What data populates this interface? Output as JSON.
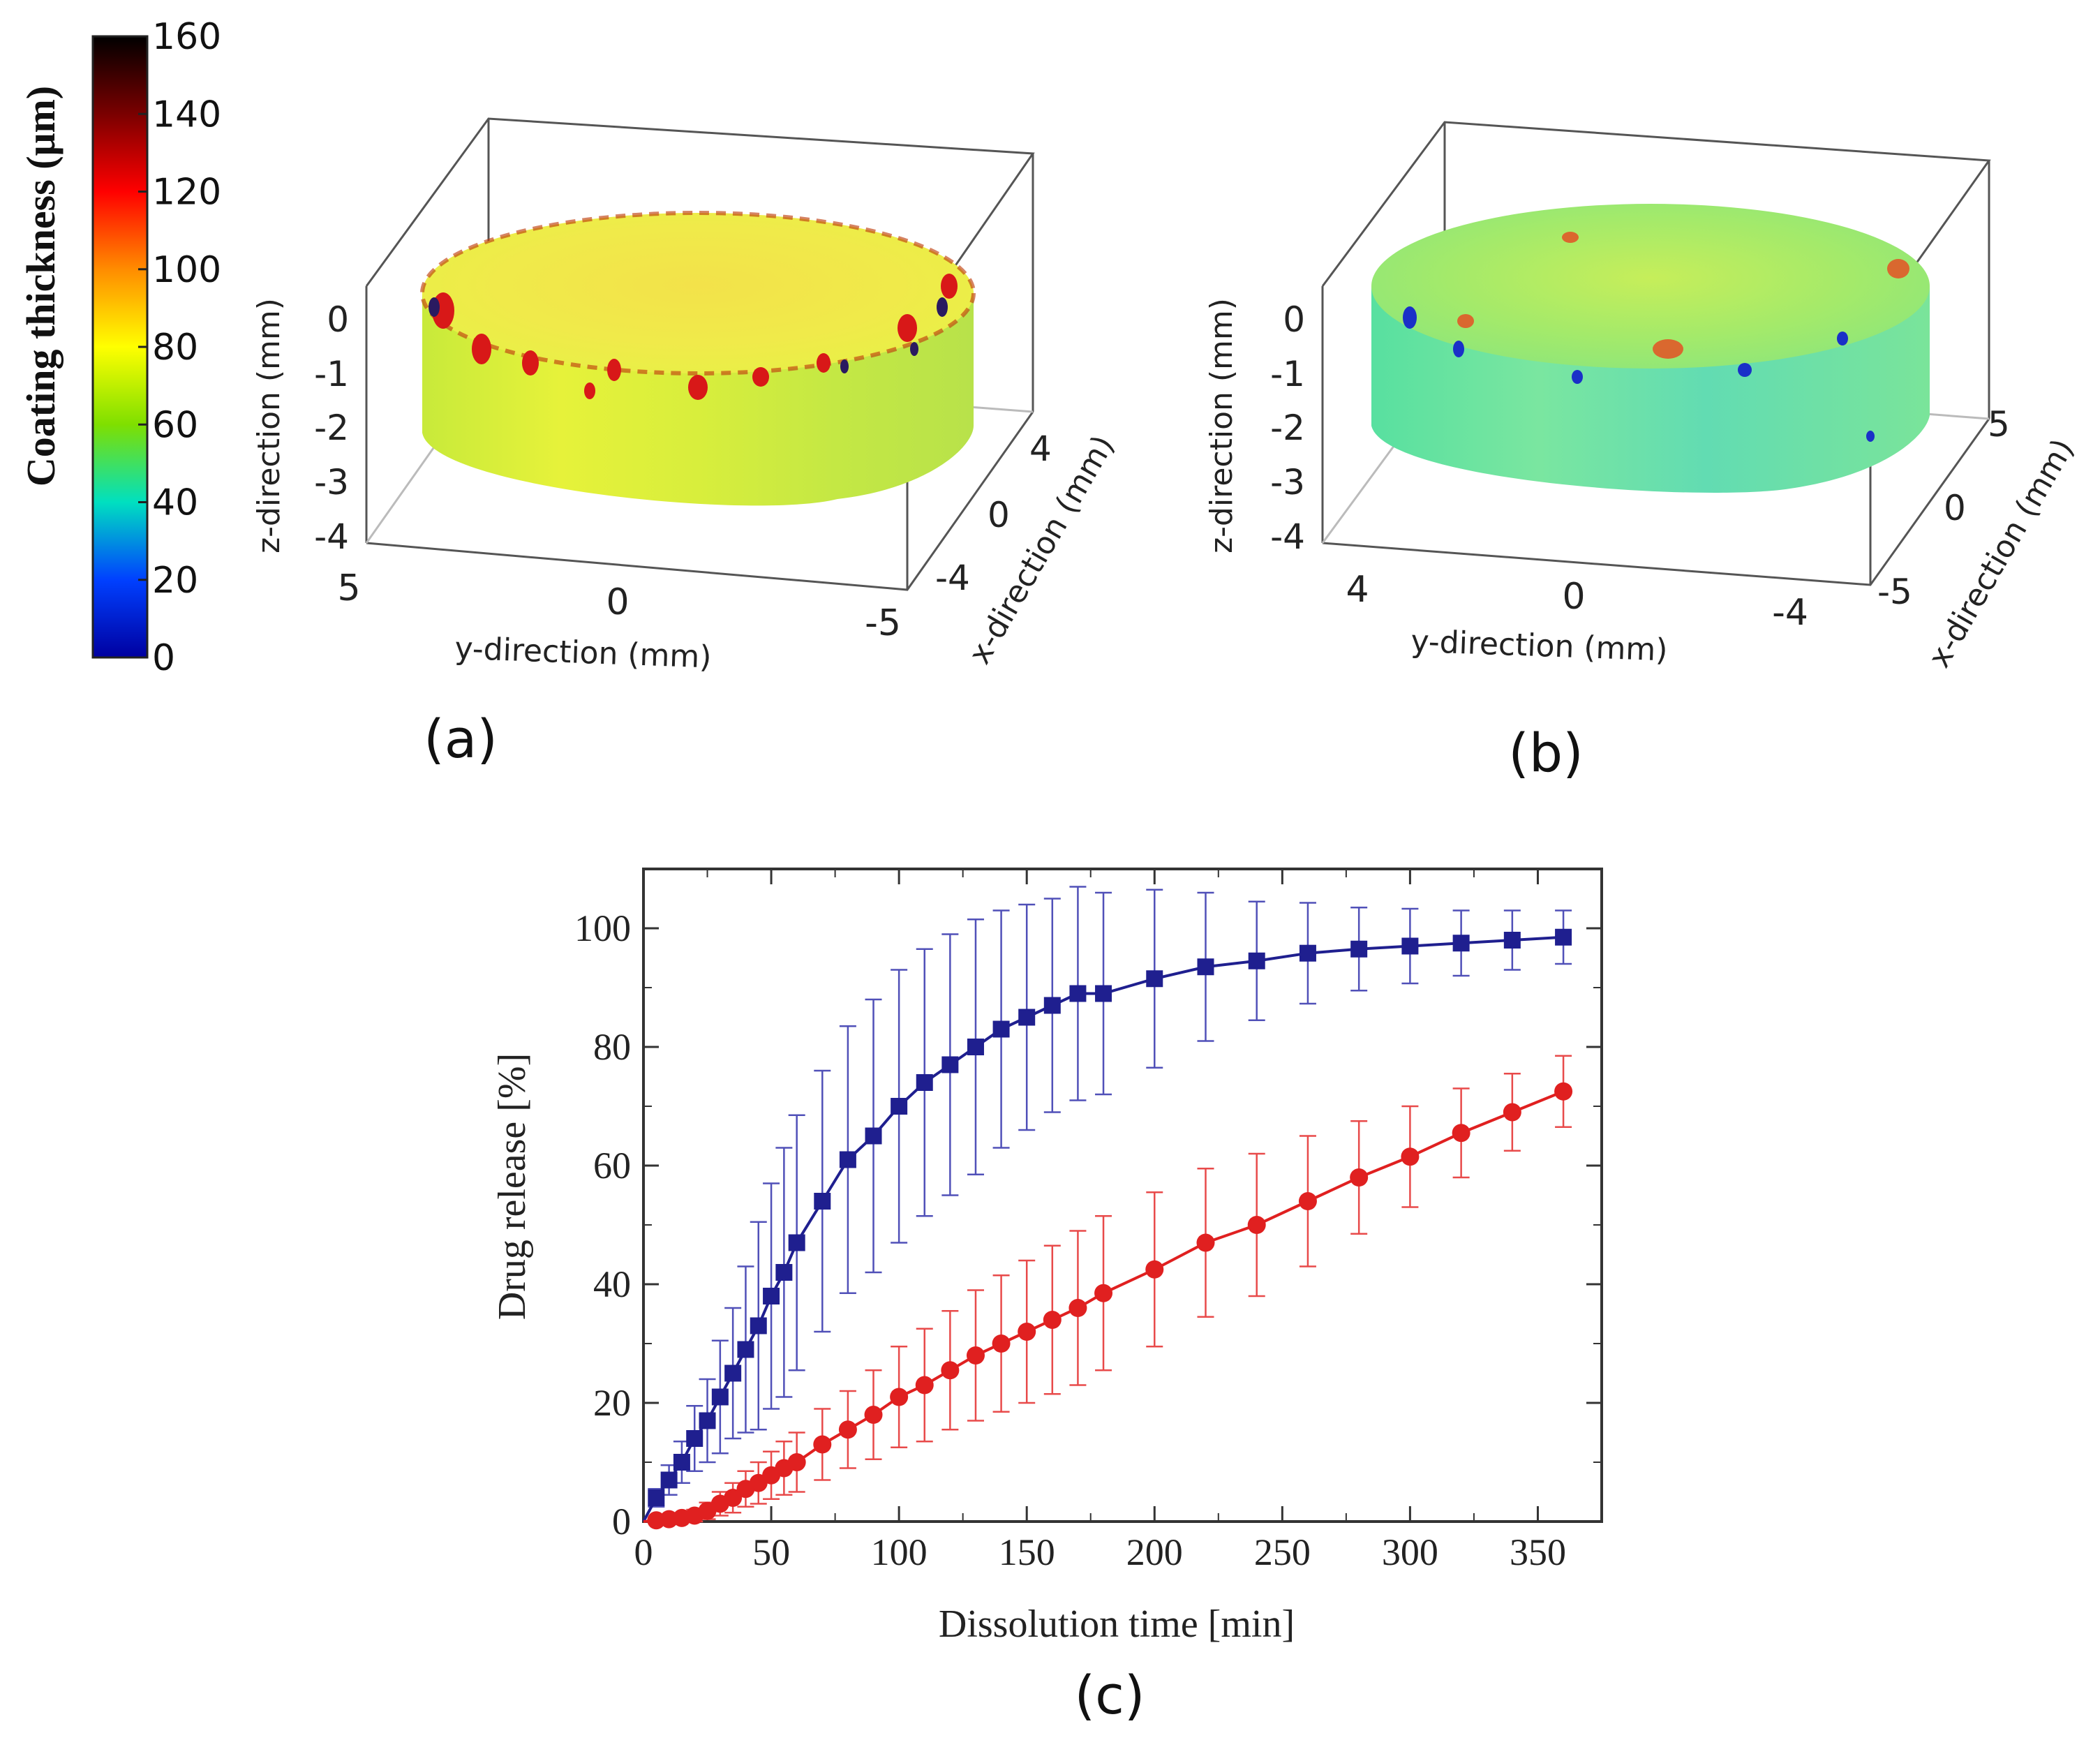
{
  "colorbar": {
    "label": "Coating thickness (μm)",
    "ticks": [
      "160",
      "140",
      "120",
      "100",
      "80",
      "60",
      "40",
      "20",
      "0"
    ],
    "colors": [
      "#000000",
      "#7a0000",
      "#ff0000",
      "#ff8c00",
      "#ffff00",
      "#7fdf00",
      "#00e0c0",
      "#0040ff",
      "#0000a0"
    ]
  },
  "panel_a": {
    "label": "(a)",
    "z_ticks": [
      "0",
      "-1",
      "-2",
      "-3",
      "-4"
    ],
    "y_ticks": [
      "5",
      "0",
      "-5"
    ],
    "x_ticks": [
      "4",
      "0",
      "-4"
    ],
    "z_label": "z-direction (mm)",
    "y_label": "y-direction (mm)",
    "x_label": "x-direction (mm)"
  },
  "panel_b": {
    "label": "(b)",
    "z_ticks": [
      "0",
      "-1",
      "-2",
      "-3",
      "-4"
    ],
    "y_ticks": [
      "4",
      "0",
      "-4"
    ],
    "x_ticks": [
      "5",
      "0",
      "-5"
    ],
    "z_label": "z-direction (mm)",
    "y_label": "y-direction (mm)",
    "x_label": "x-direction (mm)"
  },
  "panel_c": {
    "label": "(c)"
  },
  "chart_data": {
    "type": "line",
    "title": "",
    "xlabel": "Dissolution time [min]",
    "ylabel": "Drug release [%]",
    "xlim": [
      0,
      375
    ],
    "ylim": [
      0,
      110
    ],
    "xticks": [
      0,
      50,
      100,
      150,
      200,
      250,
      300,
      350
    ],
    "yticks": [
      0,
      20,
      40,
      60,
      80,
      100
    ],
    "grid": false,
    "series": [
      {
        "name": "blue squares",
        "color": "#1f1f8f",
        "errcolor": "#5050b8",
        "marker": "square",
        "x": [
          5,
          10,
          15,
          20,
          25,
          30,
          35,
          40,
          45,
          50,
          55,
          60,
          70,
          80,
          90,
          100,
          110,
          120,
          130,
          140,
          150,
          160,
          170,
          180,
          200,
          220,
          240,
          260,
          280,
          300,
          320,
          340,
          360
        ],
        "y": [
          4,
          7,
          10,
          14,
          17,
          21,
          25,
          29,
          33,
          38,
          42,
          47,
          54,
          61,
          65,
          70,
          74,
          77,
          80,
          83,
          85,
          87,
          89,
          89,
          91.5,
          93.5,
          94.5,
          95.8,
          96.5,
          97,
          97.5,
          98,
          98.5
        ],
        "err": [
          1.5,
          2.5,
          3.5,
          5.5,
          7,
          9.5,
          11,
          14,
          17.5,
          19,
          21,
          21.5,
          22,
          22.5,
          23,
          23,
          22.5,
          22,
          21.5,
          20,
          19,
          18,
          18,
          17,
          15,
          12.5,
          10,
          8.5,
          7,
          6.3,
          5.5,
          5,
          4.5
        ]
      },
      {
        "name": "red circles",
        "color": "#e02020",
        "errcolor": "#e84a4a",
        "marker": "circle",
        "x": [
          5,
          10,
          15,
          20,
          25,
          30,
          35,
          40,
          45,
          50,
          55,
          60,
          70,
          80,
          90,
          100,
          110,
          120,
          130,
          140,
          150,
          160,
          170,
          180,
          200,
          220,
          240,
          260,
          280,
          300,
          320,
          340,
          360
        ],
        "y": [
          0.2,
          0.4,
          0.6,
          1,
          1.8,
          3,
          4,
          5.5,
          6.5,
          7.8,
          9,
          10,
          13,
          15.5,
          18,
          21,
          23,
          25.5,
          28,
          30,
          32,
          34,
          36,
          38.5,
          42.5,
          47,
          50,
          54,
          58,
          61.5,
          65.5,
          69,
          72.5
        ],
        "err": [
          0.4,
          0.6,
          0.8,
          1,
          1.4,
          2,
          2.5,
          3,
          3.5,
          4,
          4.5,
          5,
          6,
          6.5,
          7.5,
          8.5,
          9.5,
          10,
          11,
          11.5,
          12,
          12.5,
          13,
          13,
          13,
          12.5,
          12,
          11,
          9.5,
          8.5,
          7.5,
          6.5,
          6
        ]
      }
    ]
  }
}
